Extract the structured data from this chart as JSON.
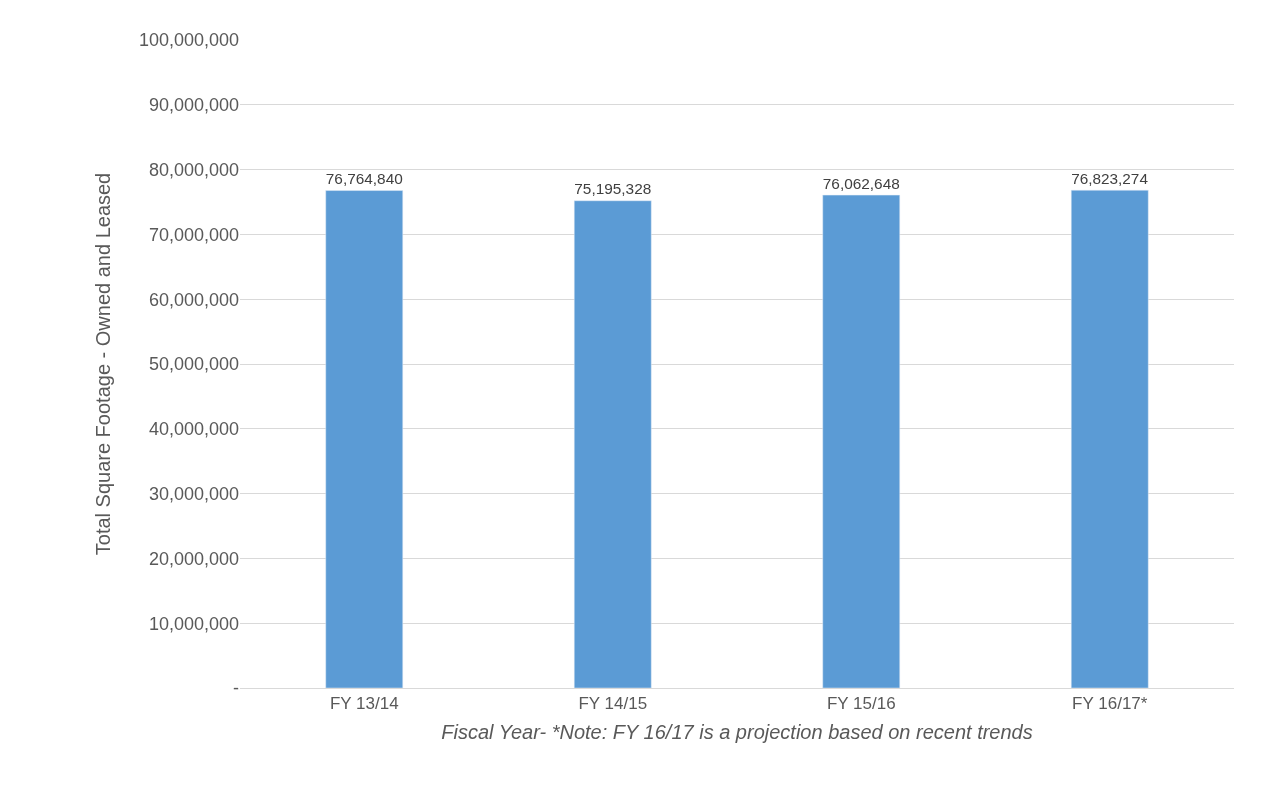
{
  "chart_data": {
    "type": "bar",
    "categories": [
      "FY 13/14",
      "FY 14/15",
      "FY 15/16",
      "FY 16/17*"
    ],
    "values": [
      76764840,
      75195328,
      76062648,
      76823274
    ],
    "value_labels": [
      "76,764,840",
      "75,195,328",
      "76,062,648",
      "76,823,274"
    ],
    "color": "#5b9bd5",
    "xlabel": "Fiscal Year- *Note: FY 16/17 is a projection based on recent trends",
    "ylabel": "Total Square Footage - Owned and Leased",
    "ylim": [
      0,
      100000000
    ],
    "yticks": [
      {
        "value": 0,
        "label": "-"
      },
      {
        "value": 10000000,
        "label": "10,000,000"
      },
      {
        "value": 20000000,
        "label": "20,000,000"
      },
      {
        "value": 30000000,
        "label": "30,000,000"
      },
      {
        "value": 40000000,
        "label": "40,000,000"
      },
      {
        "value": 50000000,
        "label": "50,000,000"
      },
      {
        "value": 60000000,
        "label": "60,000,000"
      },
      {
        "value": 70000000,
        "label": "70,000,000"
      },
      {
        "value": 80000000,
        "label": "80,000,000"
      },
      {
        "value": 90000000,
        "label": "90,000,000"
      },
      {
        "value": 100000000,
        "label": "100,000,000"
      }
    ],
    "grid": "y"
  }
}
